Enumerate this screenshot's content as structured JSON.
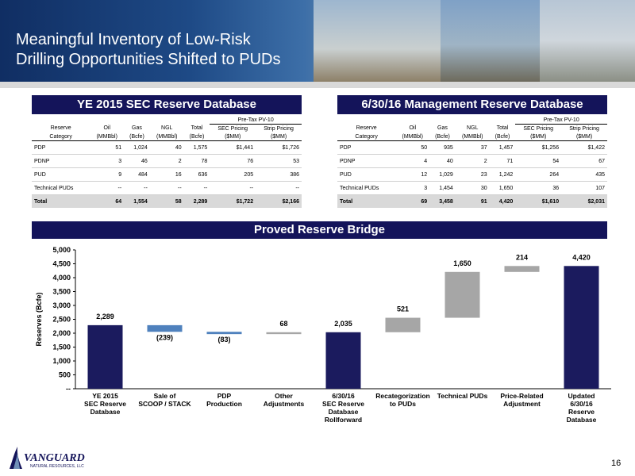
{
  "title_line1": "Meaningful Inventory of Low-Risk",
  "title_line2": "Drilling Opportunities Shifted to PUDs",
  "left_table": {
    "title": "YE 2015 SEC Reserve Database",
    "pv_header": "Pre-Tax PV-10",
    "columns": [
      [
        "Reserve",
        "Category"
      ],
      [
        "Oil",
        "(MMBbl)"
      ],
      [
        "Gas",
        "(Bcfe)"
      ],
      [
        "NGL",
        "(MMBbl)"
      ],
      [
        "Total",
        "(Bcfe)"
      ],
      [
        "SEC Pricing",
        "($MM)"
      ],
      [
        "Strip Pricing",
        "($MM)"
      ]
    ],
    "rows": [
      [
        "PDP",
        "51",
        "1,024",
        "40",
        "1,575",
        "$1,441",
        "$1,726"
      ],
      [
        "PDNP",
        "3",
        "46",
        "2",
        "78",
        "76",
        "53"
      ],
      [
        "PUD",
        "9",
        "484",
        "16",
        "636",
        "205",
        "386"
      ],
      [
        "Technical PUDs",
        "--",
        "--",
        "--",
        "--",
        "--",
        "--"
      ]
    ],
    "total": [
      "Total",
      "64",
      "1,554",
      "58",
      "2,289",
      "$1,722",
      "$2,166"
    ]
  },
  "right_table": {
    "title": "6/30/16 Management Reserve Database",
    "pv_header": "Pre-Tax PV-10",
    "columns": [
      [
        "Reserve",
        "Category"
      ],
      [
        "Oil",
        "(MMBbl)"
      ],
      [
        "Gas",
        "(Bcfe)"
      ],
      [
        "NGL",
        "(MMBbl)"
      ],
      [
        "Total",
        "(Bcfe)"
      ],
      [
        "SEC Pricing",
        "($MM)"
      ],
      [
        "Strip Pricing",
        "($MM)"
      ]
    ],
    "rows": [
      [
        "PDP",
        "50",
        "935",
        "37",
        "1,457",
        "$1,256",
        "$1,422"
      ],
      [
        "PDNP",
        "4",
        "40",
        "2",
        "71",
        "54",
        "67"
      ],
      [
        "PUD",
        "12",
        "1,029",
        "23",
        "1,242",
        "264",
        "435"
      ],
      [
        "Technical PUDs",
        "3",
        "1,454",
        "30",
        "1,650",
        "36",
        "107"
      ]
    ],
    "total": [
      "Total",
      "69",
      "3,458",
      "91",
      "4,420",
      "$1,610",
      "$2,031"
    ]
  },
  "bridge_title": "Proved Reserve Bridge",
  "chart_data": {
    "type": "bar",
    "subtype": "waterfall",
    "ylabel": "Reserves (Bcfe)",
    "ylim": [
      0,
      5000
    ],
    "yticks": [
      "--",
      "500",
      "1,000",
      "1,500",
      "2,000",
      "2,500",
      "3,000",
      "3,500",
      "4,000",
      "4,500",
      "5,000"
    ],
    "categories": [
      [
        "YE 2015",
        "SEC Reserve",
        "Database"
      ],
      [
        "Sale of",
        "SCOOP / STACK"
      ],
      [
        "PDP",
        "Production"
      ],
      [
        "Other",
        "Adjustments"
      ],
      [
        "6/30/16",
        "SEC Reserve",
        "Database",
        "Rollforward"
      ],
      [
        "Recategorization",
        "to PUDs"
      ],
      [
        "Technical PUDs"
      ],
      [
        "Price-Related",
        "Adjustment"
      ],
      [
        "Updated",
        "6/30/16",
        "Reserve",
        "Database"
      ]
    ],
    "bars": [
      {
        "kind": "total",
        "start": 0,
        "end": 2289,
        "label": "2,289"
      },
      {
        "kind": "decrease",
        "start": 2289,
        "end": 2050,
        "label": "(239)"
      },
      {
        "kind": "decrease",
        "start": 2050,
        "end": 1967,
        "label": "(83)"
      },
      {
        "kind": "increase",
        "start": 1967,
        "end": 2035,
        "label": "68"
      },
      {
        "kind": "total",
        "start": 0,
        "end": 2035,
        "label": "2,035"
      },
      {
        "kind": "increase",
        "start": 2035,
        "end": 2556,
        "label": "521"
      },
      {
        "kind": "increase",
        "start": 2556,
        "end": 4206,
        "label": "1,650"
      },
      {
        "kind": "increase",
        "start": 4206,
        "end": 4420,
        "label": "214"
      },
      {
        "kind": "total",
        "start": 0,
        "end": 4420,
        "label": "4,420"
      }
    ],
    "colors": {
      "total": "#1b1b5e",
      "decrease": "#4f81bd",
      "increase": "#a6a6a6"
    }
  },
  "logo_text": "VANGUARD",
  "logo_subtext": "NATURAL RESOURCES, LLC",
  "page_number": "16"
}
